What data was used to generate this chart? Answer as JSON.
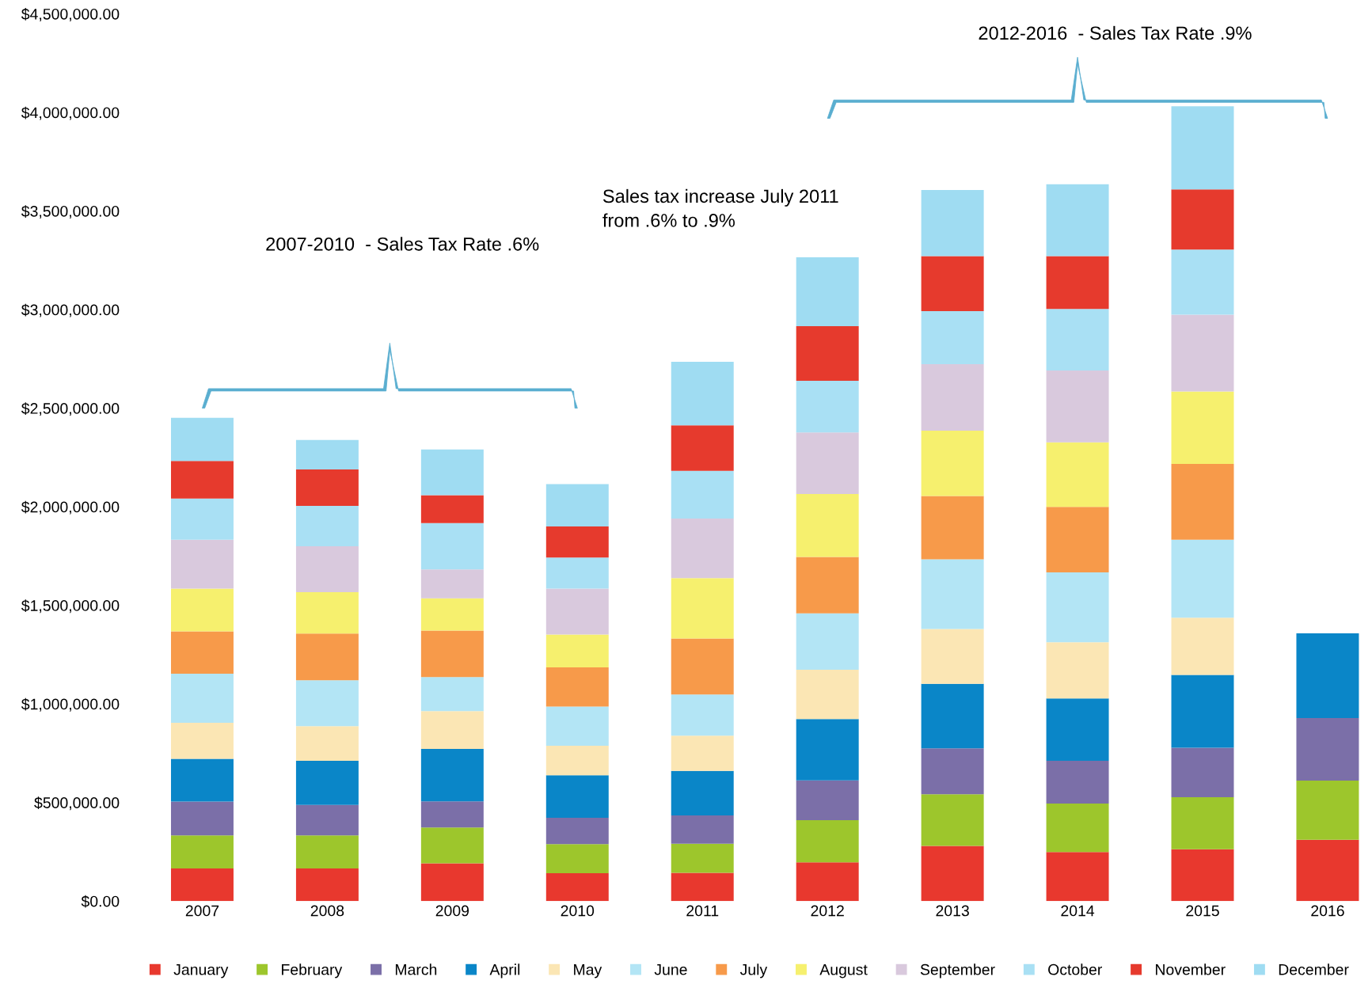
{
  "chart_data": {
    "type": "bar",
    "stacked": true,
    "categories": [
      "2007",
      "2008",
      "2009",
      "2010",
      "2011",
      "2012",
      "2013",
      "2014",
      "2015",
      "2016"
    ],
    "series": [
      {
        "name": "January",
        "color": "#e8382e",
        "values": [
          165000,
          165000,
          191000,
          141000,
          143000,
          196000,
          280000,
          249000,
          263000,
          311000
        ]
      },
      {
        "name": "February",
        "color": "#9dc62c",
        "values": [
          168000,
          168000,
          182000,
          148000,
          148000,
          214000,
          262000,
          246000,
          264000,
          300000
        ]
      },
      {
        "name": "March",
        "color": "#7b6fa8",
        "values": [
          172000,
          155000,
          133000,
          133000,
          143000,
          202000,
          233000,
          216000,
          251000,
          317000
        ]
      },
      {
        "name": "April",
        "color": "#0a86c8",
        "values": [
          216000,
          223000,
          266000,
          216000,
          226000,
          311000,
          327000,
          317000,
          369000,
          430000
        ]
      },
      {
        "name": "May",
        "color": "#fbe6b4",
        "values": [
          183000,
          176000,
          191000,
          150000,
          179000,
          250000,
          278000,
          285000,
          290000,
          null
        ]
      },
      {
        "name": "June",
        "color": "#b3e5f5",
        "values": [
          249000,
          233000,
          173000,
          198000,
          209000,
          286000,
          353000,
          354000,
          396000,
          null
        ]
      },
      {
        "name": "July",
        "color": "#f79a4a",
        "values": [
          215000,
          237000,
          236000,
          199000,
          284000,
          286000,
          322000,
          332000,
          384000,
          null
        ]
      },
      {
        "name": "August",
        "color": "#f6f06e",
        "values": [
          217000,
          210000,
          164000,
          167000,
          306000,
          320000,
          331000,
          328000,
          368000,
          null
        ]
      },
      {
        "name": "September",
        "color": "#d9c9dd",
        "values": [
          248000,
          233000,
          146000,
          233000,
          302000,
          312000,
          337000,
          364000,
          389000,
          null
        ]
      },
      {
        "name": "October",
        "color": "#a9e0f4",
        "values": [
          209000,
          204000,
          235000,
          157000,
          242000,
          262000,
          269000,
          312000,
          330000,
          null
        ]
      },
      {
        "name": "November",
        "color": "#e63a2d",
        "values": [
          190000,
          185000,
          142000,
          158000,
          231000,
          277000,
          279000,
          268000,
          305000,
          null
        ]
      },
      {
        "name": "December",
        "color": "#9fdcf2",
        "values": [
          219000,
          150000,
          231000,
          215000,
          322000,
          349000,
          335000,
          365000,
          422000,
          null
        ]
      }
    ],
    "ylim": [
      0,
      4500000
    ],
    "yticks": [
      {
        "value": 0,
        "label": "$0.00"
      },
      {
        "value": 500000,
        "label": "$500,000.00"
      },
      {
        "value": 1000000,
        "label": "$1,000,000.00"
      },
      {
        "value": 1500000,
        "label": "$1,500,000.00"
      },
      {
        "value": 2000000,
        "label": "$2,000,000.00"
      },
      {
        "value": 2500000,
        "label": "$2,500,000.00"
      },
      {
        "value": 3000000,
        "label": "$3,000,000.00"
      },
      {
        "value": 3500000,
        "label": "$3,500,000.00"
      },
      {
        "value": 4000000,
        "label": "$4,000,000.00"
      },
      {
        "value": 4500000,
        "label": "$4,500,000.00"
      }
    ],
    "annotations": [
      "2007-2010  - Sales Tax Rate .6%",
      "Sales tax increase July 2011\nfrom .6% to .9%",
      "2012-2016  - Sales Tax Rate .9%"
    ],
    "grid": false,
    "legend": "bottom"
  }
}
